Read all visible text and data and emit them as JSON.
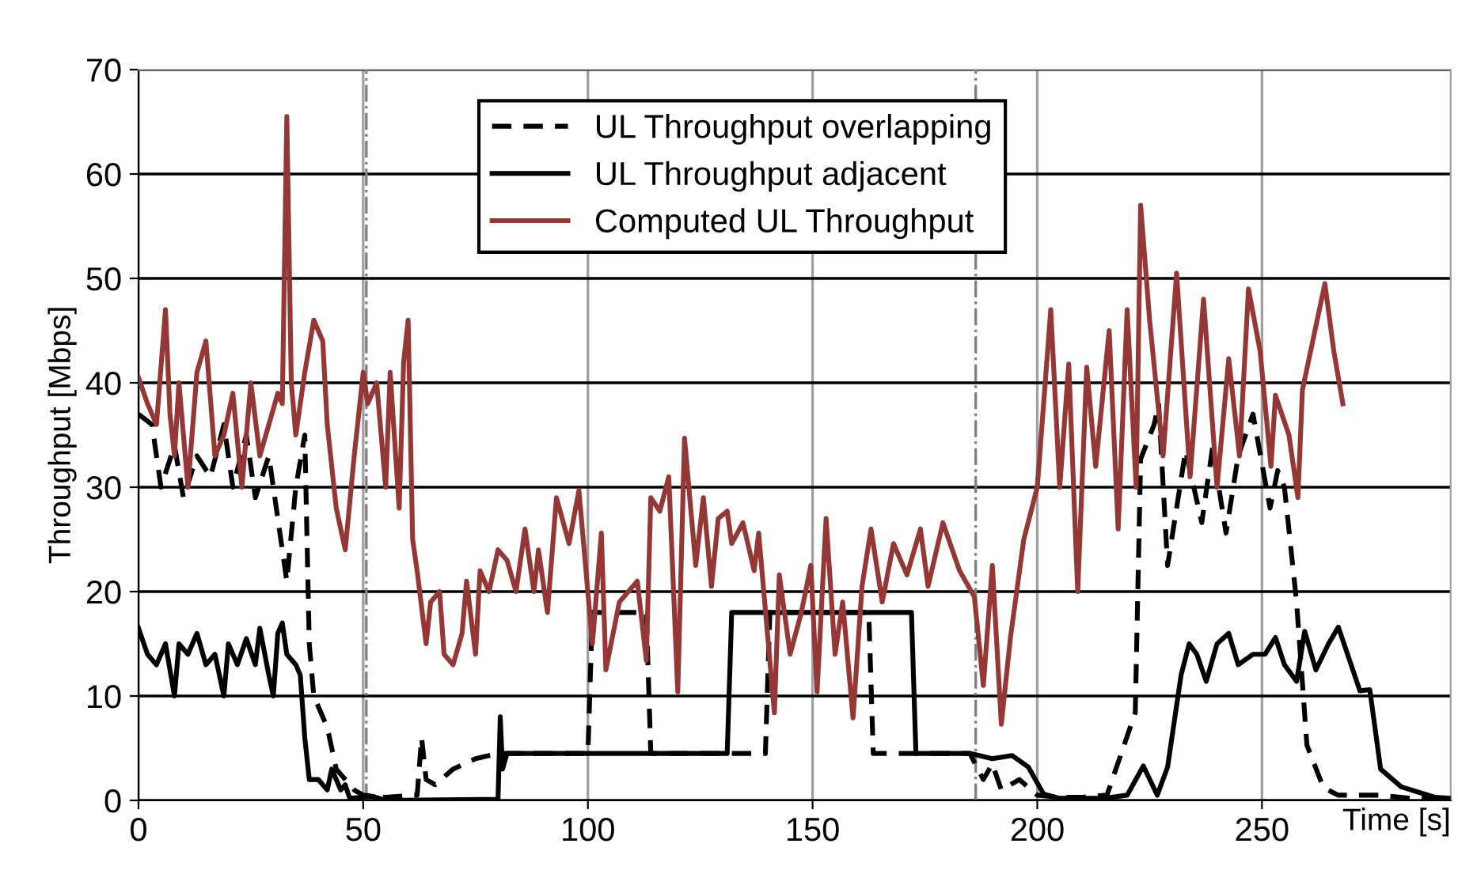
{
  "chart_data": {
    "type": "line",
    "xlabel": "Time [s]",
    "ylabel": "Throughput [Mbps]",
    "xlim": [
      0,
      292
    ],
    "ylim": [
      0,
      70
    ],
    "xticks": [
      0,
      50,
      100,
      150,
      200,
      250
    ],
    "yticks": [
      0,
      10,
      20,
      30,
      40,
      50,
      60,
      70
    ],
    "grid": true,
    "legend": "top",
    "marker": "none",
    "ref_lines": [
      {
        "axis": "x",
        "value": 50.7,
        "color": "#808080",
        "line_style": "dashdot"
      },
      {
        "axis": "x",
        "value": 186.3,
        "color": "#808080",
        "line_style": "dashdot"
      }
    ],
    "series": [
      {
        "name": "UL Throughput overlapping",
        "color": "#000000",
        "line_style": "dashed",
        "x": [
          0,
          3,
          5,
          8,
          10,
          13,
          16,
          19,
          21,
          24,
          26,
          29,
          31,
          33,
          35,
          37,
          38,
          39,
          40,
          42,
          44,
          46,
          48,
          50,
          55,
          62,
          63,
          64,
          66,
          70,
          75,
          80,
          100,
          101,
          113,
          114,
          139.5,
          140.5,
          162.5,
          163.5,
          185,
          188,
          190,
          192,
          196,
          200,
          205,
          210,
          215.5,
          221.8,
          223,
          226,
          227,
          229,
          233,
          236.6,
          239,
          242,
          244.7,
          248,
          251.8,
          253.5,
          255,
          257.7,
          260,
          263.7,
          267,
          276,
          283,
          292
        ],
        "values": [
          37,
          36,
          30,
          34,
          29,
          33,
          31,
          36,
          30,
          35,
          29,
          33,
          27,
          21,
          30,
          35,
          15,
          10,
          9,
          7,
          3,
          2,
          1,
          0.5,
          0.3,
          0.5,
          6,
          2,
          1.5,
          3,
          4,
          4.5,
          4.5,
          18,
          18,
          4.5,
          4.5,
          18,
          18,
          4.5,
          4.5,
          2,
          3.5,
          1,
          2,
          0.5,
          0.3,
          0.3,
          0.5,
          8.4,
          32.7,
          36,
          38,
          22.5,
          33.5,
          26.6,
          33.8,
          25.6,
          33,
          37,
          28,
          31.6,
          30,
          19,
          5.3,
          1.2,
          0.5,
          0.5,
          0.2,
          0.2
        ]
      },
      {
        "name": "UL Throughput adjacent",
        "color": "#000000",
        "line_style": "solid",
        "x": [
          0,
          2,
          4,
          6,
          8,
          9,
          11,
          13,
          15,
          17,
          19,
          20,
          22,
          24,
          26,
          27,
          29,
          30,
          31,
          32,
          33,
          35,
          36,
          37,
          38,
          40,
          42,
          43,
          45,
          46,
          47,
          50,
          52,
          55,
          80,
          80.5,
          81,
          82,
          131,
          132,
          172,
          173,
          185,
          190,
          194.4,
          198,
          201.4,
          205,
          215,
          220,
          223.6,
          226.7,
          229,
          232,
          233.8,
          235.5,
          237.6,
          240,
          242.6,
          244.7,
          248,
          250.7,
          253,
          255,
          257.7,
          259.5,
          262,
          264.8,
          267,
          271.8,
          274,
          276.4,
          281,
          288.4,
          292
        ],
        "values": [
          16.5,
          14,
          13,
          15,
          10,
          15,
          14,
          16,
          13,
          14,
          10,
          15,
          13,
          15.5,
          13,
          16.5,
          12,
          10,
          16,
          17,
          14,
          13,
          12,
          6,
          2,
          2,
          1,
          3,
          1,
          1.5,
          0.2,
          0.3,
          0.4,
          0,
          0.1,
          8,
          3,
          4.5,
          4.5,
          18,
          18,
          4.5,
          4.5,
          4,
          4.3,
          3.2,
          0.6,
          0.2,
          0.2,
          0.5,
          3.3,
          0.5,
          3.2,
          12,
          15,
          14,
          11.4,
          15,
          16,
          13,
          14,
          14,
          15.6,
          13,
          11.4,
          16.2,
          12.5,
          15,
          16.6,
          10.5,
          10.6,
          3,
          1.3,
          0.3,
          0.2
        ]
      },
      {
        "name": "Computed UL Throughput",
        "color": "#953735",
        "line_style": "solid",
        "x": [
          0,
          2,
          4,
          6,
          7,
          8,
          9,
          11,
          13,
          15,
          17,
          19,
          21,
          23,
          25,
          27,
          29,
          31,
          32,
          33,
          34,
          35,
          37,
          39,
          41,
          42,
          44,
          46,
          48,
          50,
          51,
          53,
          55,
          56,
          58,
          59,
          60,
          61,
          62,
          64,
          65,
          67,
          68,
          70,
          72,
          73,
          75,
          76,
          78,
          80,
          82,
          84,
          86,
          88,
          89,
          91,
          93,
          95.8,
          98,
          101,
          103,
          104,
          107,
          111,
          113,
          114,
          116,
          118,
          120,
          121.5,
          124,
          125.7,
          127.5,
          129,
          131,
          132,
          134.5,
          137,
          138,
          141.5,
          142.6,
          145,
          147.5,
          149.6,
          151,
          153,
          155,
          156.7,
          159,
          161,
          163,
          165.5,
          168,
          171,
          174,
          175.7,
          179,
          182.7,
          186,
          188,
          190,
          192,
          194,
          197,
          200,
          203,
          205,
          207,
          209,
          211,
          213,
          216,
          218,
          220,
          222,
          223,
          225,
          228,
          231,
          234,
          237,
          240,
          242.6,
          245,
          247,
          249.6,
          252,
          253,
          256,
          258,
          259,
          264,
          266,
          268
        ],
        "values": [
          40.5,
          38,
          36,
          47,
          37,
          33,
          40,
          30,
          41,
          44,
          33,
          35,
          39,
          30,
          40,
          33,
          36,
          39,
          38,
          65.5,
          40,
          35,
          41,
          46,
          44,
          36,
          28,
          24,
          33,
          41,
          38,
          40,
          30,
          41,
          28,
          42,
          46,
          25,
          22,
          15,
          19,
          20,
          14,
          13,
          16,
          21,
          14,
          22,
          20,
          24,
          23,
          20,
          26,
          20,
          24,
          18,
          29,
          24.6,
          29.7,
          15,
          25.6,
          12.5,
          19,
          21,
          13.4,
          29,
          27.7,
          31,
          10.4,
          34.7,
          22.5,
          29,
          20.5,
          27,
          27.7,
          24.6,
          26.6,
          22,
          25.6,
          8.4,
          21.6,
          14,
          18,
          22.5,
          10.4,
          27,
          14,
          19,
          7.9,
          20.5,
          26,
          19,
          24.6,
          21.6,
          26,
          20.5,
          26.6,
          22,
          19.5,
          11,
          22.5,
          7.3,
          15.5,
          25,
          30,
          47,
          30,
          41.8,
          20,
          41.5,
          32,
          45,
          26,
          47,
          30,
          57,
          46,
          33,
          50.5,
          31,
          48,
          30,
          42.3,
          33,
          49,
          43,
          32,
          38.8,
          35,
          29,
          39.3,
          49.5,
          43,
          38
        ]
      }
    ]
  }
}
